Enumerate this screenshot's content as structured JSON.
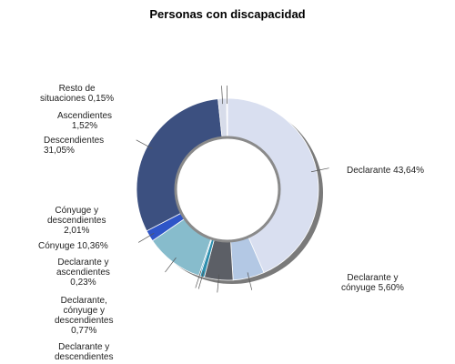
{
  "chart_data": {
    "type": "pie",
    "title": "Personas con discapacidad",
    "series": [
      {
        "label": "Declarante 43,64%",
        "value": 43.64,
        "color": "#d9dff0"
      },
      {
        "label": "Declarante y\ncónyuge 5,60%",
        "value": 5.6,
        "color": "#b3c8e4"
      },
      {
        "label": "Declarante y\ndescendientes",
        "value": 5.12,
        "color": "#5c5f66"
      },
      {
        "label": "Declarante,\ncónyuge y\ndescendientes\n0,77%",
        "value": 0.77,
        "color": "#2e8fae"
      },
      {
        "label": "Declarante y\nascendientes\n0,23%",
        "value": 0.23,
        "color": "#2b8fb8"
      },
      {
        "label": "Cónyuge 10,36%",
        "value": 10.36,
        "color": "#87bccc"
      },
      {
        "label": "Cónyuge y\ndescendientes\n2,01%",
        "value": 2.01,
        "color": "#2e55c8"
      },
      {
        "label": "Descendientes\n31,05%",
        "value": 31.05,
        "color": "#3c5080"
      },
      {
        "label": "Ascendientes\n1,52%",
        "value": 1.52,
        "color": "#d7dcea"
      },
      {
        "label": "Resto de\nsituaciones 0,15%",
        "value": 0.15,
        "color": "#c7cbd6"
      }
    ]
  }
}
